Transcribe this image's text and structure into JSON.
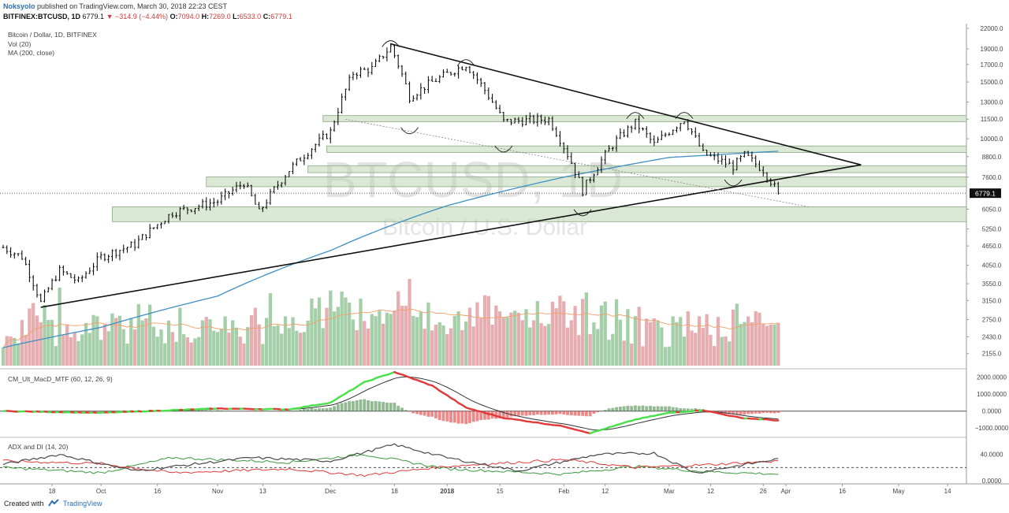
{
  "header": {
    "author": "Noksyolo",
    "published": "published on TradingView.com, March 30, 2018 22:23 CEST",
    "symbol": "BITFINEX:BTCUSD, 1D",
    "last": "6779.1",
    "change": "▼ −314.9 (−4.44%)",
    "open_label": "O:",
    "open": "7094.0",
    "high_label": "H:",
    "high": "7269.0",
    "low_label": "L:",
    "low": "6533.0",
    "close_label": "C:",
    "close": "6779.1"
  },
  "footer": {
    "created_with": "Created with",
    "brand": "TradingView"
  },
  "colors": {
    "up_volume": "#a5cfa9",
    "down_volume": "#e6aeb0",
    "ma200": "#3f8fc4",
    "zone": "#bcd6b3",
    "macd_up": "#4ae04a",
    "macd_down": "#e23a3a",
    "adx": "#4a4a4a",
    "di_plus": "#3a9a3a",
    "di_minus": "#e03a3a",
    "volume_ma": "#f0a06a"
  },
  "chart_data": [
    {
      "type": "candlestick",
      "title": "Bitcoin / Dollar, 1D, BITFINEX",
      "indicators": [
        "Vol (20)",
        "MA (200, close)"
      ],
      "watermark": "BTCUSD, 1D",
      "watermark_sub": "Bitcoin / U.S. Dollar",
      "y_scale": "log",
      "y_ticks": [
        22000,
        19000,
        17000,
        15000,
        13000,
        11500,
        10000,
        8800,
        7600,
        6779.1,
        6050,
        5250,
        4650,
        4050,
        3550,
        3150,
        2750,
        2430,
        2155
      ],
      "y_tick_labels": [
        "22000.0",
        "19000.0",
        "17000.0",
        "15000.0",
        "13000.0",
        "11500.0",
        "10000.0",
        "8800.0",
        "7600.0",
        "6779.1",
        "6050.0",
        "5250.0",
        "4650.0",
        "4050.0",
        "3550.0",
        "3150.0",
        "2750.0",
        "2430.0",
        "2155.0"
      ],
      "last_price": 6779.1,
      "x_tick_labels": [
        "18",
        "Oct",
        "16",
        "Nov",
        "13",
        "Dec",
        "18",
        "2018",
        "15",
        "Feb",
        "12",
        "Mar",
        "12",
        "26",
        "Apr",
        "16",
        "May",
        "14"
      ],
      "x_tick_dates": [
        "2017-09-18",
        "2017-10-01",
        "2017-10-16",
        "2017-11-01",
        "2017-11-13",
        "2017-12-01",
        "2017-12-18",
        "2018-01-01",
        "2018-01-15",
        "2018-02-01",
        "2018-02-12",
        "2018-03-01",
        "2018-03-12",
        "2018-03-26",
        "2018-04-01",
        "2018-04-16",
        "2018-05-01",
        "2018-05-14"
      ],
      "x_range": [
        "2017-09-05",
        "2018-05-19"
      ],
      "price_anchors": [
        {
          "date": "2017-09-05",
          "close": 4600
        },
        {
          "date": "2017-09-10",
          "close": 4300
        },
        {
          "date": "2017-09-15",
          "close": 3100
        },
        {
          "date": "2017-09-20",
          "close": 3900
        },
        {
          "date": "2017-09-25",
          "close": 3600
        },
        {
          "date": "2017-10-01",
          "close": 4300
        },
        {
          "date": "2017-10-10",
          "close": 4700
        },
        {
          "date": "2017-10-20",
          "close": 5900
        },
        {
          "date": "2017-11-01",
          "close": 6400
        },
        {
          "date": "2017-11-08",
          "close": 7300
        },
        {
          "date": "2017-11-12",
          "close": 5900
        },
        {
          "date": "2017-11-20",
          "close": 8000
        },
        {
          "date": "2017-12-01",
          "close": 10500
        },
        {
          "date": "2017-12-07",
          "close": 16000
        },
        {
          "date": "2017-12-12",
          "close": 16500
        },
        {
          "date": "2017-12-17",
          "close": 19300
        },
        {
          "date": "2017-12-22",
          "close": 13500
        },
        {
          "date": "2017-12-28",
          "close": 15000
        },
        {
          "date": "2018-01-06",
          "close": 17000
        },
        {
          "date": "2018-01-16",
          "close": 11300
        },
        {
          "date": "2018-01-28",
          "close": 11500
        },
        {
          "date": "2018-02-06",
          "close": 6900
        },
        {
          "date": "2018-02-15",
          "close": 9900
        },
        {
          "date": "2018-02-20",
          "close": 11200
        },
        {
          "date": "2018-02-25",
          "close": 9600
        },
        {
          "date": "2018-03-05",
          "close": 11500
        },
        {
          "date": "2018-03-10",
          "close": 9000
        },
        {
          "date": "2018-03-18",
          "close": 8200
        },
        {
          "date": "2018-03-21",
          "close": 8900
        },
        {
          "date": "2018-03-26",
          "close": 8000
        },
        {
          "date": "2018-03-30",
          "close": 6779.1
        }
      ],
      "ma200_anchors": [
        {
          "date": "2017-09-05",
          "value": 2250
        },
        {
          "date": "2017-10-01",
          "value": 2600
        },
        {
          "date": "2017-11-01",
          "value": 3250
        },
        {
          "date": "2017-12-01",
          "value": 4500
        },
        {
          "date": "2018-01-01",
          "value": 6200
        },
        {
          "date": "2018-02-01",
          "value": 7600
        },
        {
          "date": "2018-03-01",
          "value": 8750
        },
        {
          "date": "2018-03-30",
          "value": 9150
        }
      ],
      "support_zones": [
        {
          "from": "2017-10-04",
          "to": "2018-05-19",
          "low": 5530,
          "high": 6150
        },
        {
          "from": "2017-10-29",
          "to": "2018-05-19",
          "low": 7100,
          "high": 7620
        },
        {
          "from": "2017-11-25",
          "to": "2018-05-19",
          "low": 7850,
          "high": 8250
        },
        {
          "from": "2017-11-30",
          "to": "2018-05-19",
          "low": 9070,
          "high": 9500
        },
        {
          "from": "2017-11-29",
          "to": "2018-05-19",
          "low": 11300,
          "high": 11800
        }
      ],
      "trendlines": [
        {
          "from": {
            "date": "2017-09-15",
            "price": 3000
          },
          "to": {
            "date": "2018-04-21",
            "price": 8300
          },
          "style": "solid"
        },
        {
          "from": {
            "date": "2017-12-17",
            "price": 19700
          },
          "to": {
            "date": "2018-04-21",
            "price": 8300
          },
          "style": "solid"
        },
        {
          "from": {
            "date": "2017-12-05",
            "price": 11500
          },
          "to": {
            "date": "2018-04-07",
            "price": 6150
          },
          "style": "dotted"
        }
      ]
    },
    {
      "type": "bar",
      "title": "Volume",
      "series_colors": {
        "up": "#a5cfa9",
        "down": "#e6aeb0"
      },
      "values_description_none": ""
    },
    {
      "type": "line",
      "title": "CM_Ult_MacD_MTF (60, 12, 26, 9)",
      "y_ticks": [
        2000,
        1000,
        0,
        -1000
      ],
      "y_tick_labels": [
        "2000.0000",
        "1000.0000",
        "0.0000",
        "−1000.0000"
      ],
      "macd_anchors": [
        {
          "date": "2017-09-05",
          "value": 0
        },
        {
          "date": "2017-10-01",
          "value": -100
        },
        {
          "date": "2017-11-01",
          "value": 150
        },
        {
          "date": "2017-11-20",
          "value": 100
        },
        {
          "date": "2017-12-01",
          "value": 500
        },
        {
          "date": "2017-12-10",
          "value": 1700
        },
        {
          "date": "2017-12-18",
          "value": 2300
        },
        {
          "date": "2017-12-28",
          "value": 1500
        },
        {
          "date": "2018-01-06",
          "value": 200
        },
        {
          "date": "2018-01-16",
          "value": -400
        },
        {
          "date": "2018-02-01",
          "value": -900
        },
        {
          "date": "2018-02-08",
          "value": -1300
        },
        {
          "date": "2018-02-20",
          "value": -500
        },
        {
          "date": "2018-03-01",
          "value": -100
        },
        {
          "date": "2018-03-10",
          "value": 50
        },
        {
          "date": "2018-03-20",
          "value": -400
        },
        {
          "date": "2018-03-30",
          "value": -550
        }
      ]
    },
    {
      "type": "line",
      "title": "ADX and DI (14, 20)",
      "y_ticks": [
        40,
        20,
        0
      ],
      "y_tick_labels": [
        "40.0000",
        "",
        "0.0000"
      ],
      "threshold": 20,
      "adx_anchors": [
        {
          "date": "2017-09-05",
          "value": 25
        },
        {
          "date": "2017-09-20",
          "value": 40
        },
        {
          "date": "2017-10-10",
          "value": 15
        },
        {
          "date": "2017-11-10",
          "value": 35
        },
        {
          "date": "2017-12-01",
          "value": 30
        },
        {
          "date": "2017-12-18",
          "value": 55
        },
        {
          "date": "2018-01-01",
          "value": 35
        },
        {
          "date": "2018-01-20",
          "value": 15
        },
        {
          "date": "2018-02-10",
          "value": 40
        },
        {
          "date": "2018-02-25",
          "value": 42
        },
        {
          "date": "2018-03-08",
          "value": 12
        },
        {
          "date": "2018-03-30",
          "value": 33
        }
      ],
      "di_plus_anchors": [
        {
          "date": "2017-09-05",
          "value": 20
        },
        {
          "date": "2017-10-01",
          "value": 12
        },
        {
          "date": "2017-10-20",
          "value": 35
        },
        {
          "date": "2017-11-20",
          "value": 28
        },
        {
          "date": "2017-12-10",
          "value": 40
        },
        {
          "date": "2018-01-01",
          "value": 18
        },
        {
          "date": "2018-02-01",
          "value": 10
        },
        {
          "date": "2018-02-20",
          "value": 22
        },
        {
          "date": "2018-03-10",
          "value": 14
        },
        {
          "date": "2018-03-30",
          "value": 10
        }
      ],
      "di_minus_anchors": [
        {
          "date": "2017-09-05",
          "value": 30
        },
        {
          "date": "2017-10-01",
          "value": 26
        },
        {
          "date": "2017-10-20",
          "value": 12
        },
        {
          "date": "2017-11-20",
          "value": 18
        },
        {
          "date": "2017-12-10",
          "value": 8
        },
        {
          "date": "2018-01-01",
          "value": 22
        },
        {
          "date": "2018-02-01",
          "value": 32
        },
        {
          "date": "2018-02-20",
          "value": 20
        },
        {
          "date": "2018-03-10",
          "value": 24
        },
        {
          "date": "2018-03-30",
          "value": 30
        }
      ]
    }
  ]
}
